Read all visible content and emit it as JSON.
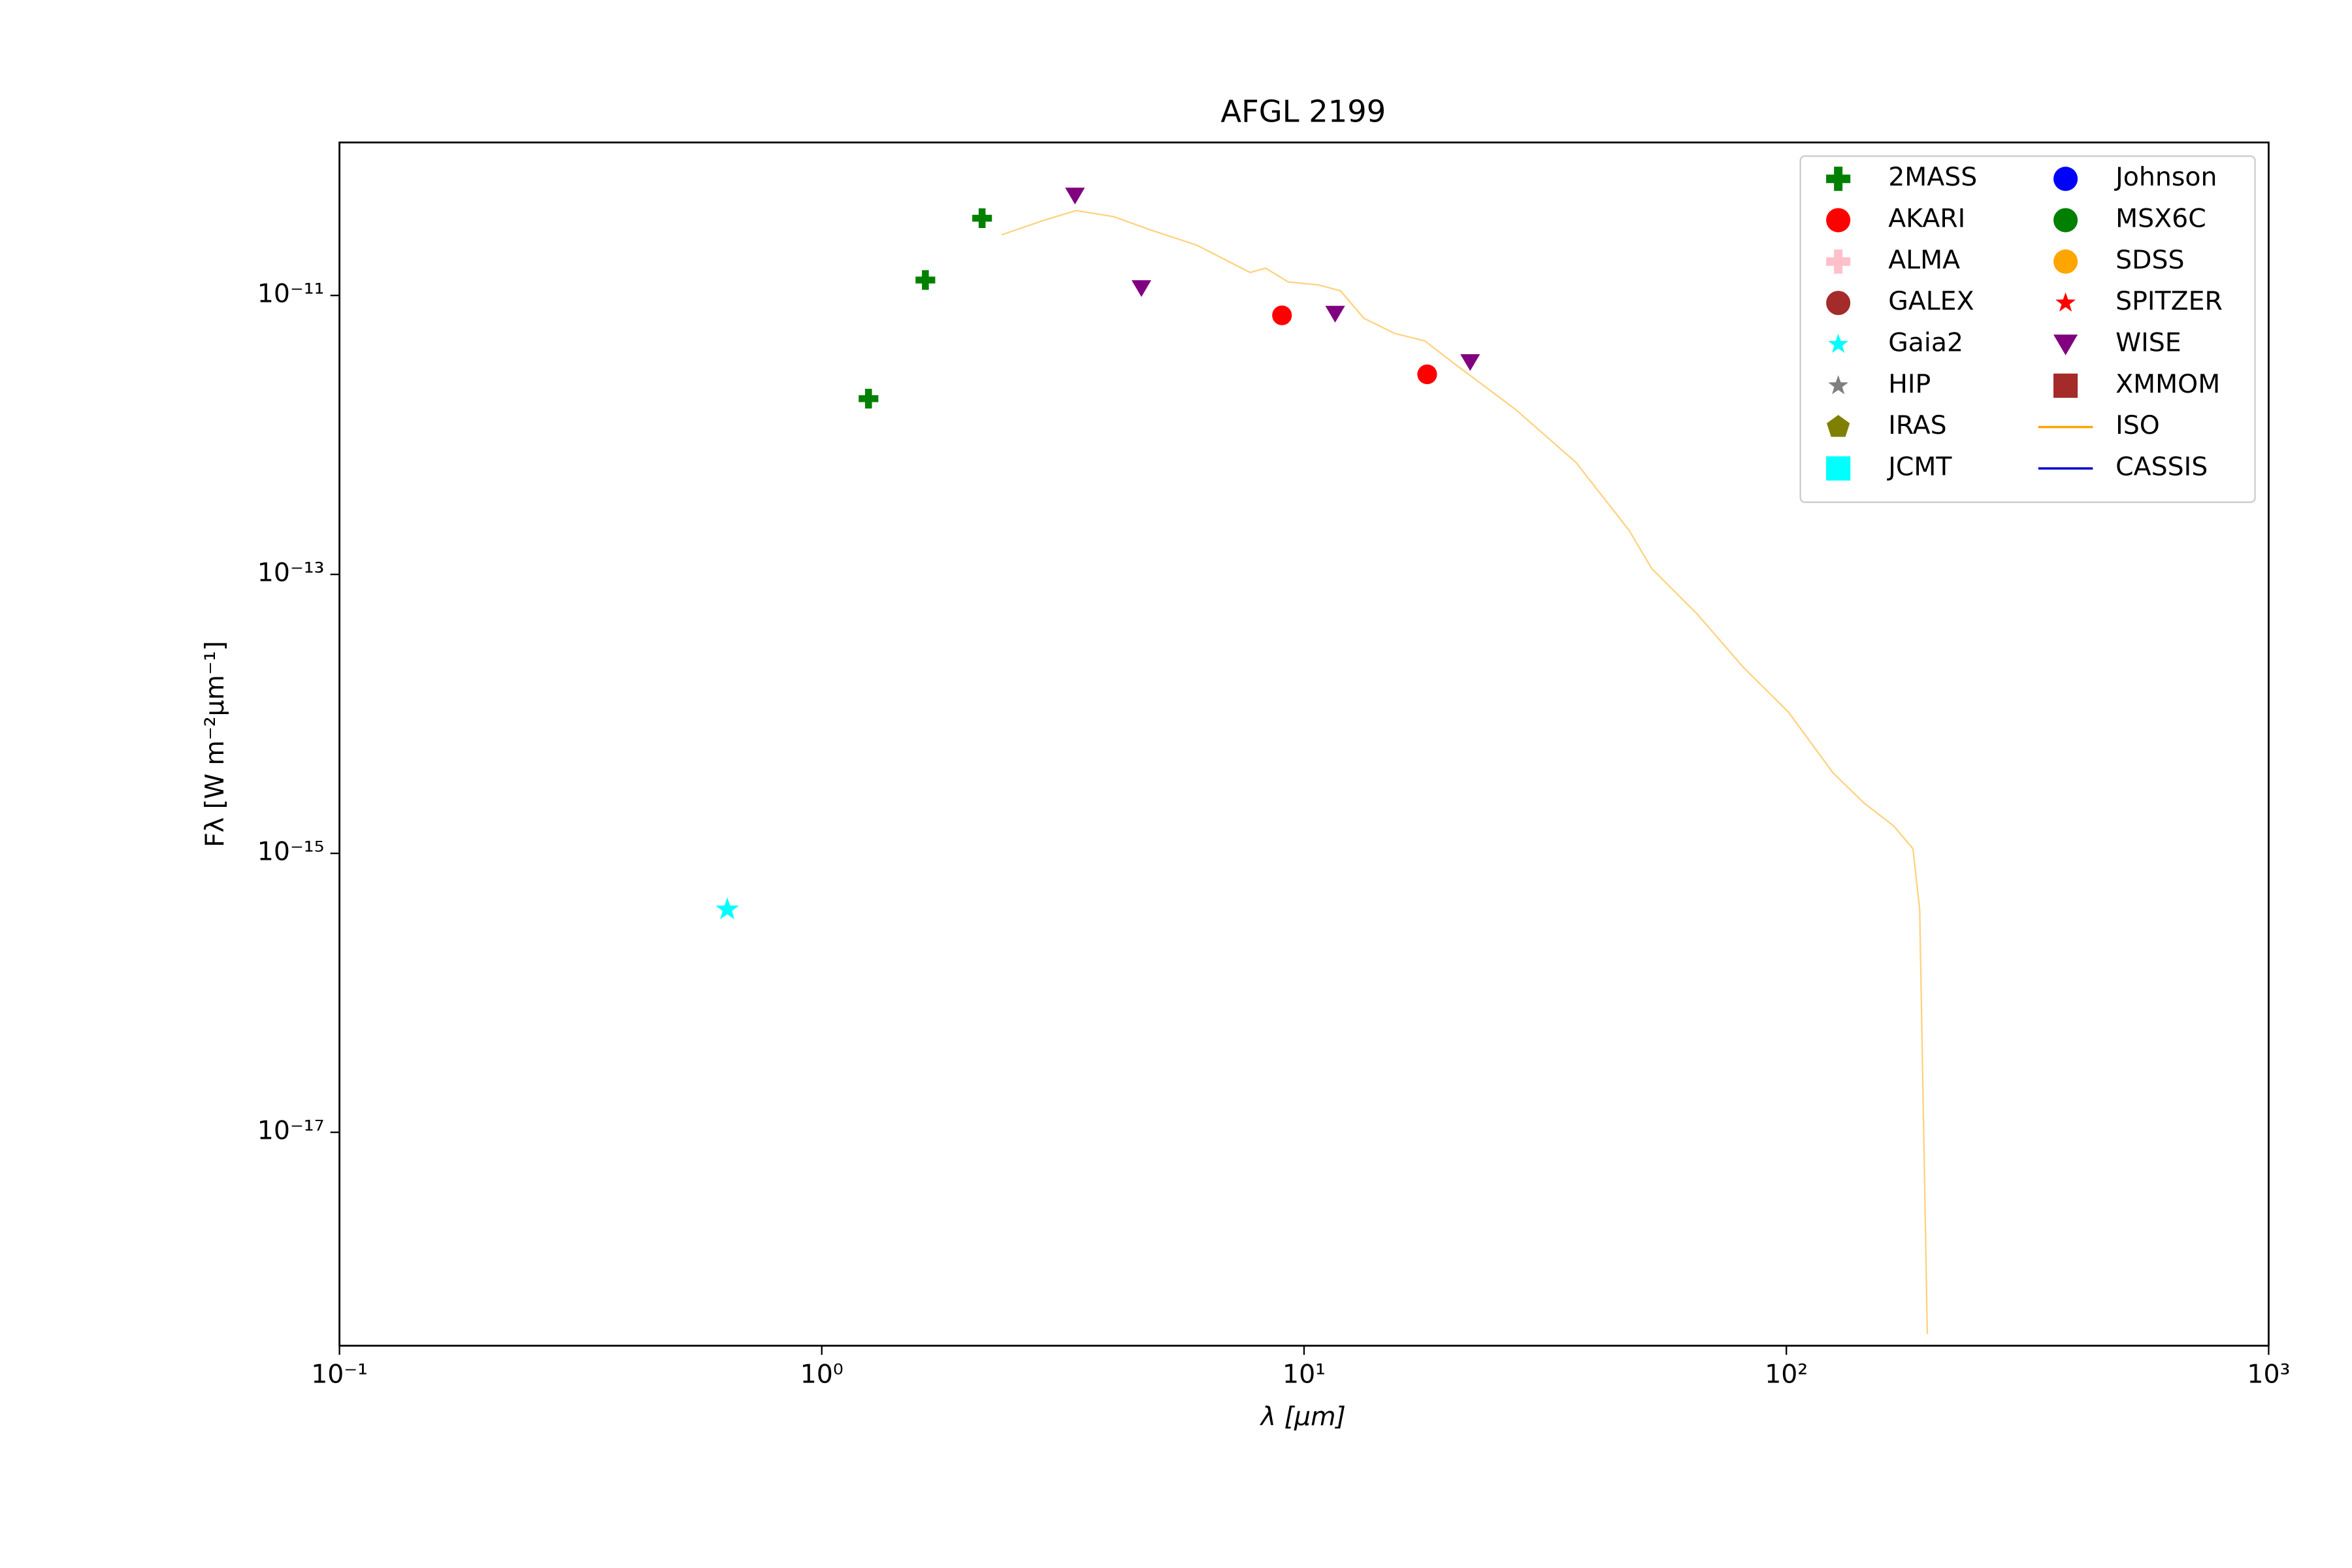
{
  "chart_data": {
    "type": "scatter",
    "title": "AFGL 2199",
    "xlabel": "λ [μm]",
    "ylabel": "Fλ [W m⁻²μm⁻¹]",
    "xscale": "log",
    "yscale": "log",
    "xlim": [
      0.1,
      1000
    ],
    "ylim": [
      1.25e-10,
      2.95e-19
    ],
    "xticks": [
      {
        "value": 0.1,
        "label": "10⁻¹"
      },
      {
        "value": 1,
        "label": "10⁰"
      },
      {
        "value": 10,
        "label": "10¹"
      },
      {
        "value": 100,
        "label": "10²"
      },
      {
        "value": 1000,
        "label": "10³"
      }
    ],
    "yticks": [
      {
        "value": 1e-11,
        "label": "10⁻¹¹"
      },
      {
        "value": 1e-13,
        "label": "10⁻¹³"
      },
      {
        "value": 1e-15,
        "label": "10⁻¹⁵"
      },
      {
        "value": 1e-17,
        "label": "10⁻¹⁷"
      }
    ],
    "legend": "upper right",
    "legend_columns": 2,
    "series": [
      {
        "name": "2MASS",
        "color": "#008000",
        "marker": "plus",
        "x": [
          1.25,
          1.64,
          2.15
        ],
        "values": [
          1.82e-12,
          1.29e-11,
          3.58e-11
        ]
      },
      {
        "name": "AKARI",
        "color": "#ff0000",
        "marker": "circle",
        "x": [
          9.0,
          18.0
        ],
        "values": [
          7.2e-12,
          2.72e-12
        ]
      },
      {
        "name": "ALMA",
        "color": "#ffc0cb",
        "marker": "plus",
        "x": [],
        "values": []
      },
      {
        "name": "GALEX",
        "color": "#a52a2a",
        "marker": "circle",
        "x": [],
        "values": []
      },
      {
        "name": "Gaia2",
        "color": "#00ffff",
        "marker": "star",
        "x": [
          0.637
        ],
        "values": [
          3.96e-16
        ]
      },
      {
        "name": "HIP",
        "color": "#808080",
        "marker": "star",
        "x": [],
        "values": []
      },
      {
        "name": "IRAS",
        "color": "#808000",
        "marker": "pentagon",
        "x": [],
        "values": []
      },
      {
        "name": "JCMT",
        "color": "#00ffff",
        "marker": "square",
        "x": [],
        "values": []
      },
      {
        "name": "Johnson",
        "color": "#0000ff",
        "marker": "circle",
        "x": [],
        "values": []
      },
      {
        "name": "MSX6C",
        "color": "#008000",
        "marker": "circle",
        "x": [],
        "values": []
      },
      {
        "name": "SDSS",
        "color": "#ffa500",
        "marker": "circle",
        "x": [],
        "values": []
      },
      {
        "name": "SPITZER",
        "color": "#ff0000",
        "marker": "star",
        "x": [],
        "values": []
      },
      {
        "name": "WISE",
        "color": "#800080",
        "marker": "triangle-down",
        "x": [
          3.35,
          4.6,
          11.6,
          22.1
        ],
        "values": [
          5.2e-11,
          1.13e-11,
          7.4e-12,
          3.33e-12
        ]
      },
      {
        "name": "XMMOM",
        "color": "#a52a2a",
        "marker": "square",
        "x": [],
        "values": []
      },
      {
        "name": "ISO",
        "color": "#ffa500",
        "marker": "line",
        "alpha": 0.5,
        "x": [
          2.36,
          2.91,
          3.37,
          4.03,
          4.83,
          6.0,
          7.73,
          8.32,
          9.27,
          10.7,
          11.9,
          13.3,
          15.4,
          17.8,
          20.5,
          27.4,
          36.6,
          47.2,
          52.6,
          65.3,
          81.3,
          101,
          125,
          145,
          167,
          183,
          189,
          194,
          196
        ],
        "values": [
          2.72e-11,
          3.49e-11,
          4.06e-11,
          3.67e-11,
          2.93e-11,
          2.29e-11,
          1.46e-11,
          1.57e-11,
          1.25e-11,
          1.19e-11,
          1.08e-11,
          6.87e-12,
          5.35e-12,
          4.72e-12,
          3.24e-12,
          1.53e-12,
          6.37e-13,
          2.07e-13,
          1.1e-13,
          5.21e-14,
          2.17e-14,
          1.03e-14,
          3.77e-15,
          2.29e-15,
          1.57e-15,
          1.08e-15,
          3.96e-16,
          2.65e-18,
          3.58e-19
        ]
      },
      {
        "name": "CASSIS",
        "color": "#0000cd",
        "marker": "line",
        "x": [],
        "values": []
      }
    ]
  }
}
